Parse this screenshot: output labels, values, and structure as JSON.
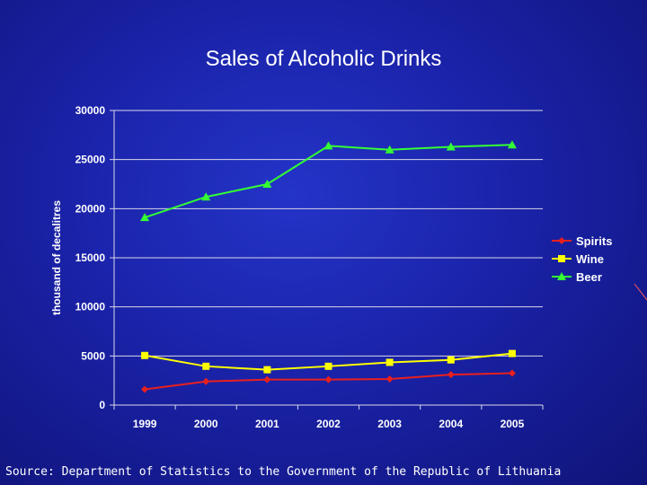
{
  "slide": {
    "title": "Sales of Alcoholic Drinks",
    "source": "Source: Department of Statistics to the Government of the Republic of Lithuania"
  },
  "chart_data": {
    "type": "line",
    "title": "Sales of Alcoholic Drinks",
    "xlabel": "",
    "ylabel": "thousand of decalitres",
    "categories": [
      "1999",
      "2000",
      "2001",
      "2002",
      "2003",
      "2004",
      "2005"
    ],
    "ylim": [
      0,
      30000
    ],
    "yticks": [
      0,
      5000,
      10000,
      15000,
      20000,
      25000,
      30000
    ],
    "grid": "horizontal",
    "legend": "right",
    "series": [
      {
        "name": "Spirits",
        "color": "#e8201e",
        "marker": "diamond",
        "values": [
          1600,
          2400,
          2600,
          2600,
          2650,
          3100,
          3250
        ]
      },
      {
        "name": "Wine",
        "color": "#ffff00",
        "marker": "square",
        "values": [
          5050,
          3950,
          3600,
          3950,
          4350,
          4600,
          5250
        ]
      },
      {
        "name": "Beer",
        "color": "#33ff33",
        "marker": "triangle",
        "values": [
          19100,
          21200,
          22500,
          26400,
          26000,
          26300,
          26500
        ]
      }
    ]
  }
}
